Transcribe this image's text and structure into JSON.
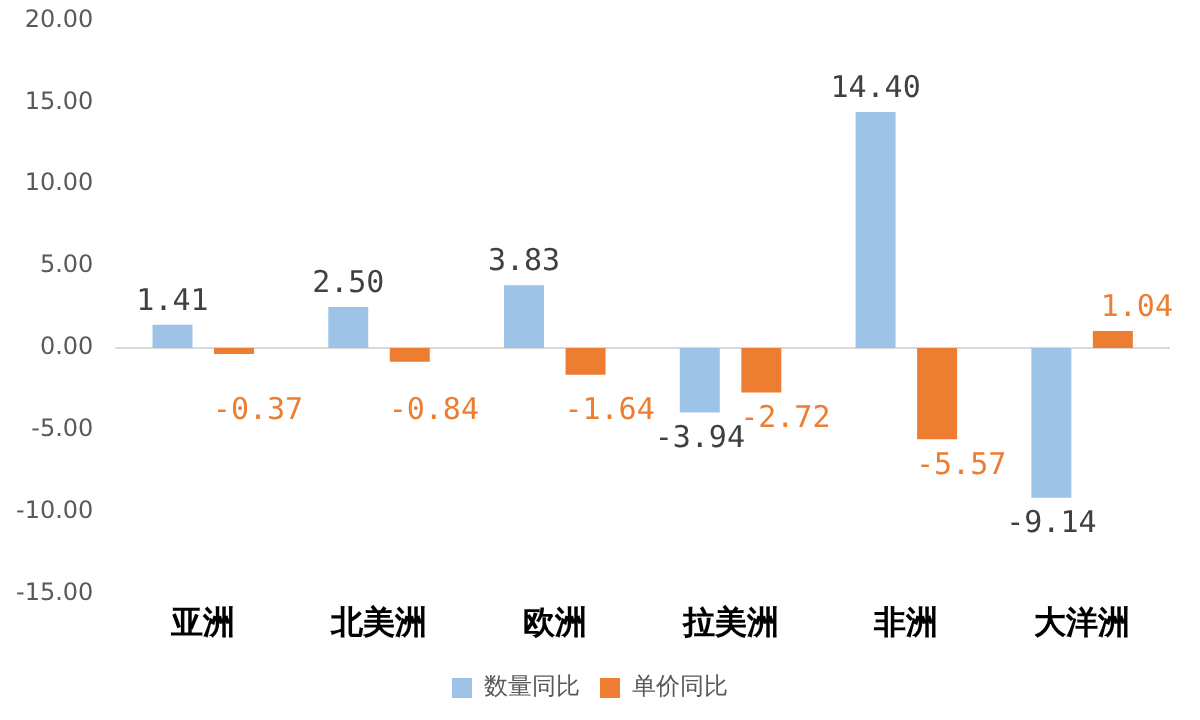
{
  "chart_data": {
    "type": "bar",
    "categories": [
      "亚洲",
      "北美洲",
      "欧洲",
      "拉美洲",
      "非洲",
      "大洋洲"
    ],
    "series": [
      {
        "name": "数量同比",
        "color": "#9dc3e6",
        "values": [
          1.41,
          2.5,
          3.83,
          -3.94,
          14.4,
          -9.14
        ],
        "value_labels": [
          "1.41",
          "2.50",
          "3.83",
          "-3.94",
          "14.40",
          "-9.14"
        ]
      },
      {
        "name": "单价同比",
        "color": "#ed7d31",
        "values": [
          -0.37,
          -0.84,
          -1.64,
          -2.72,
          -5.57,
          1.04
        ],
        "value_labels": [
          "-0.37",
          "-0.84",
          "-1.64",
          "-2.72",
          "-5.57",
          "1.04"
        ]
      }
    ],
    "ylim": [
      -15,
      20
    ],
    "yticks": [
      {
        "value": -15,
        "label": "-15.00"
      },
      {
        "value": -10,
        "label": "-10.00"
      },
      {
        "value": -5,
        "label": "-5.00"
      },
      {
        "value": 0,
        "label": "0.00"
      },
      {
        "value": 5,
        "label": "5.00"
      },
      {
        "value": 10,
        "label": "10.00"
      },
      {
        "value": 15,
        "label": "15.00"
      },
      {
        "value": 20,
        "label": "20.00"
      }
    ],
    "ref_lines": [
      {
        "axis": "y",
        "value": 0,
        "color": "#d9d9d9"
      }
    ],
    "grid": false,
    "legend": "bottom"
  }
}
